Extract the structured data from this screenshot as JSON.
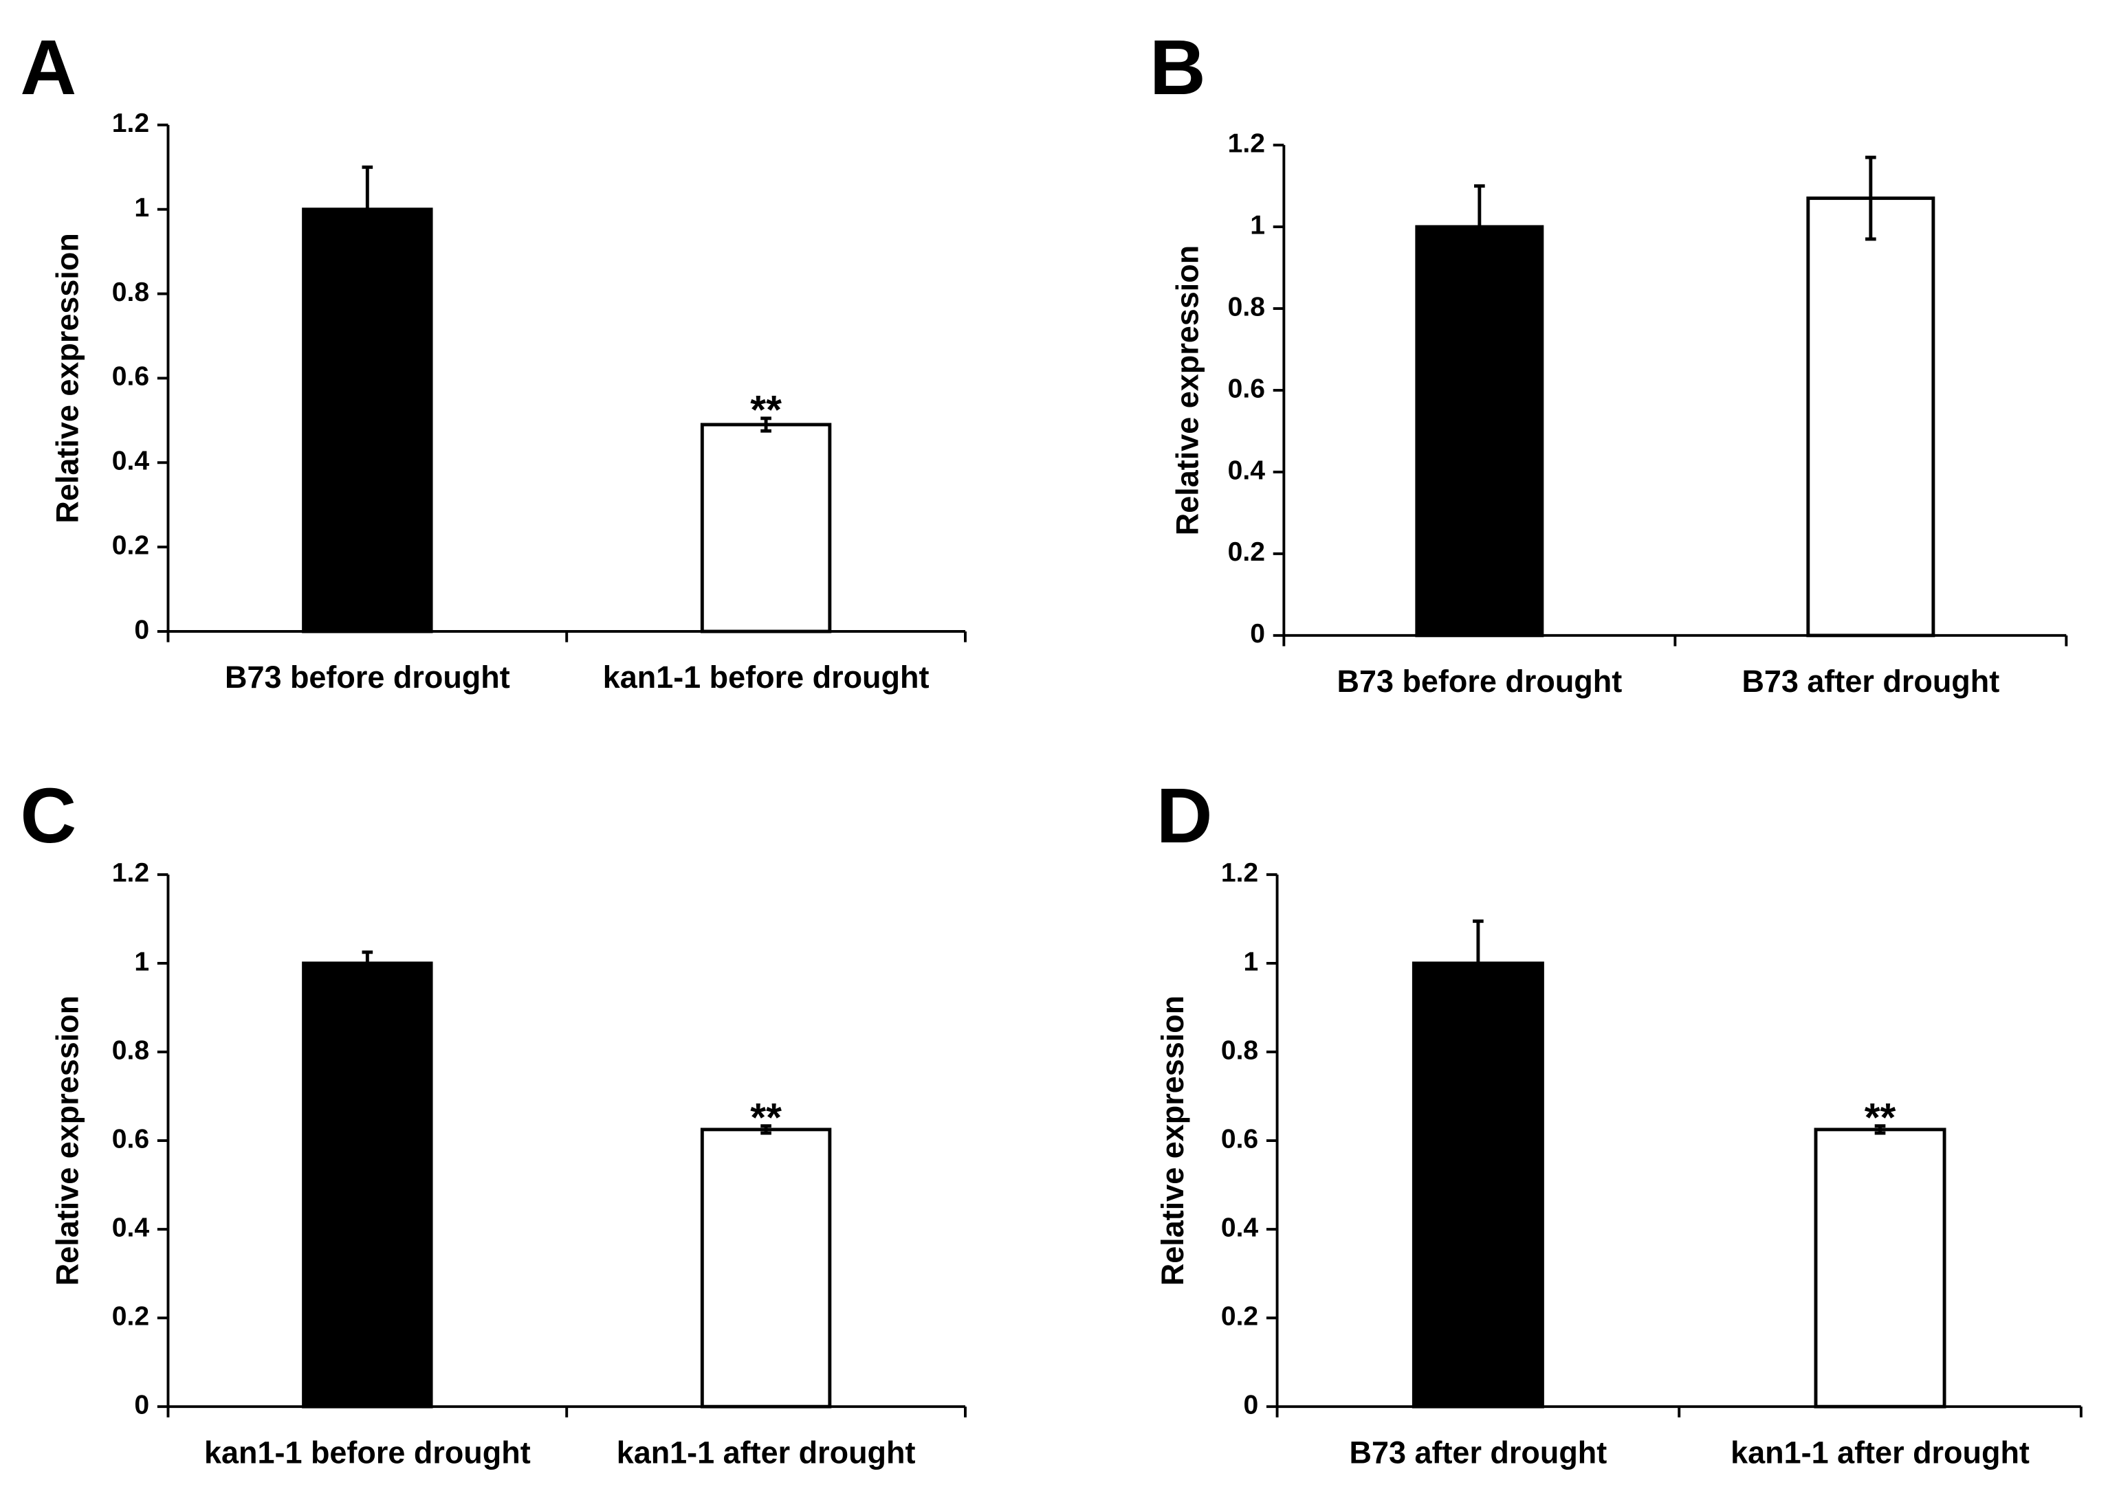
{
  "chart_data": [
    {
      "type": "bar",
      "label": "A",
      "y_label": "Relative expression",
      "categories": [
        "B73 before drought",
        "kan1-1 before drought"
      ],
      "values": [
        1.0,
        0.49
      ],
      "errors": [
        0.1,
        0.015
      ],
      "annotations": [
        null,
        "**"
      ],
      "colors": [
        "#000000",
        "#ffffff"
      ],
      "ylim": [
        0,
        1.2
      ],
      "yticks": [
        0,
        0.2,
        0.4,
        0.6,
        0.8,
        1,
        1.2
      ]
    },
    {
      "type": "bar",
      "label": "B",
      "y_label": "Relative expression",
      "categories": [
        "B73 before drought",
        "B73 after drought"
      ],
      "values": [
        1.0,
        1.07
      ],
      "errors": [
        0.1,
        0.1
      ],
      "annotations": [
        null,
        null
      ],
      "colors": [
        "#000000",
        "#ffffff"
      ],
      "ylim": [
        0,
        1.2
      ],
      "yticks": [
        0,
        0.2,
        0.4,
        0.6,
        0.8,
        1,
        1.2
      ]
    },
    {
      "type": "bar",
      "label": "C",
      "y_label": "Relative expression",
      "categories": [
        "kan1-1 before drought",
        "kan1-1 after drought"
      ],
      "values": [
        1.0,
        0.625
      ],
      "errors": [
        0.025,
        0.008
      ],
      "annotations": [
        null,
        "**"
      ],
      "colors": [
        "#000000",
        "#ffffff"
      ],
      "ylim": [
        0,
        1.2
      ],
      "yticks": [
        0,
        0.2,
        0.4,
        0.6,
        0.8,
        1,
        1.2
      ]
    },
    {
      "type": "bar",
      "label": "D",
      "y_label": "Relative expression",
      "categories": [
        "B73 after drought",
        "kan1-1 after drought"
      ],
      "values": [
        1.0,
        0.625
      ],
      "errors": [
        0.095,
        0.008
      ],
      "annotations": [
        null,
        "**"
      ],
      "colors": [
        "#000000",
        "#ffffff"
      ],
      "ylim": [
        0,
        1.2
      ],
      "yticks": [
        0,
        0.2,
        0.4,
        0.6,
        0.8,
        1,
        1.2
      ]
    }
  ]
}
